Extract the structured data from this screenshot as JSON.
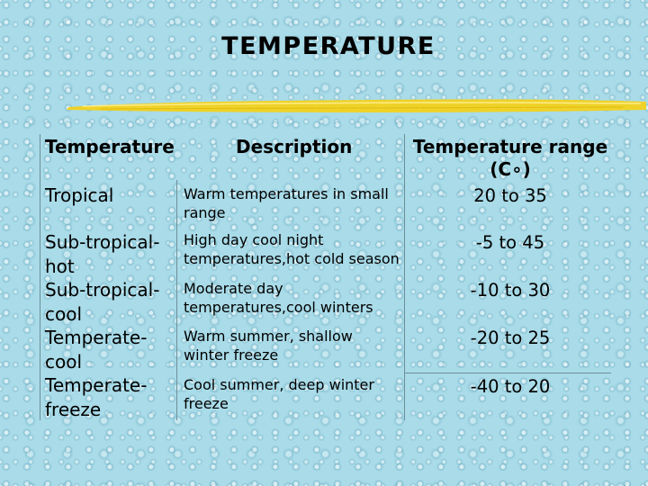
{
  "title": "TEMPERATURE",
  "accent_color": "#f2d21d",
  "table": {
    "headers": {
      "temperature": "Temperature",
      "description": "Description",
      "range_line1": "Temperature range",
      "range_line2": "(C∘)"
    },
    "tropical": {
      "label": "Tropical",
      "description_line1": "Warm temperatures in small",
      "description_line2": "range",
      "range": "20 to 35"
    },
    "climates": [
      "Sub-tropical-",
      "hot",
      "Sub-tropical-",
      "cool",
      "Temperate-",
      "cool",
      "Temperate-",
      "freeze"
    ],
    "rows": [
      {
        "description_line1": "High day cool night",
        "description_line2": "temperatures,hot cold season",
        "range": "-5 to 45"
      },
      {
        "description_line1": "Moderate day",
        "description_line2": "temperatures,cool winters",
        "range": "-10 to 30"
      },
      {
        "description_line1": "Warm summer, shallow",
        "description_line2": "winter freeze",
        "range": "-20 to 25"
      },
      {
        "description_line1": "Cool summer, deep winter",
        "description_line2": "freeze",
        "range": "-40 to 20"
      }
    ]
  }
}
